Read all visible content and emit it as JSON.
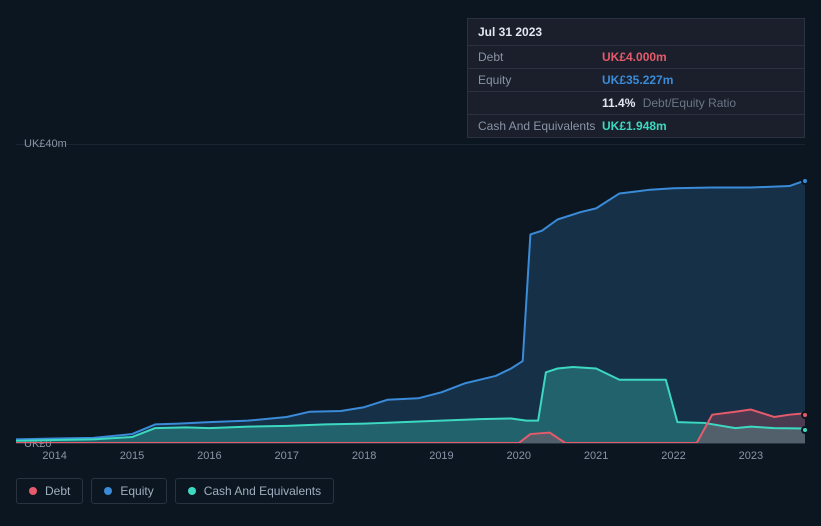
{
  "tooltip": {
    "date": "Jul 31 2023",
    "rows": {
      "debt": {
        "label": "Debt",
        "value": "UK£4.000m"
      },
      "equity": {
        "label": "Equity",
        "value": "UK£35.227m"
      },
      "ratio": {
        "pct": "11.4%",
        "label": "Debt/Equity Ratio"
      },
      "cash": {
        "label": "Cash And Equivalents",
        "value": "UK£1.948m"
      }
    }
  },
  "chart": {
    "type": "area",
    "background_color": "#0c1621",
    "grid_color": "rgba(140,150,170,0.12)",
    "axis_text_color": "#8a94a6",
    "y": {
      "min": 0,
      "max": 40,
      "ticks": [
        {
          "v": 40,
          "label": "UK£40m"
        },
        {
          "v": 0,
          "label": "UK£0"
        }
      ]
    },
    "x": {
      "min": 2013.5,
      "max": 2023.7,
      "ticks": [
        2014,
        2015,
        2016,
        2017,
        2018,
        2019,
        2020,
        2021,
        2022,
        2023
      ]
    },
    "series": {
      "equity": {
        "label": "Equity",
        "stroke": "#3a8bd8",
        "fill": "rgba(58,139,216,0.22)",
        "line_width": 2,
        "points": [
          [
            2013.5,
            0.5
          ],
          [
            2014.0,
            0.6
          ],
          [
            2014.5,
            0.7
          ],
          [
            2015.0,
            1.2
          ],
          [
            2015.3,
            2.5
          ],
          [
            2015.6,
            2.6
          ],
          [
            2016.0,
            2.8
          ],
          [
            2016.5,
            3.0
          ],
          [
            2017.0,
            3.5
          ],
          [
            2017.3,
            4.2
          ],
          [
            2017.7,
            4.3
          ],
          [
            2018.0,
            4.8
          ],
          [
            2018.3,
            5.8
          ],
          [
            2018.7,
            6.0
          ],
          [
            2019.0,
            6.8
          ],
          [
            2019.3,
            8.0
          ],
          [
            2019.7,
            9.0
          ],
          [
            2019.9,
            10.0
          ],
          [
            2020.05,
            11.0
          ],
          [
            2020.15,
            28.0
          ],
          [
            2020.3,
            28.5
          ],
          [
            2020.5,
            30.0
          ],
          [
            2020.8,
            31.0
          ],
          [
            2021.0,
            31.5
          ],
          [
            2021.3,
            33.5
          ],
          [
            2021.7,
            34.0
          ],
          [
            2022.0,
            34.2
          ],
          [
            2022.5,
            34.3
          ],
          [
            2023.0,
            34.3
          ],
          [
            2023.5,
            34.5
          ],
          [
            2023.7,
            35.227
          ]
        ]
      },
      "cash": {
        "label": "Cash And Equivalents",
        "stroke": "#3dd8c0",
        "fill": "rgba(61,216,192,0.30)",
        "line_width": 2,
        "points": [
          [
            2013.5,
            0.3
          ],
          [
            2014.0,
            0.4
          ],
          [
            2014.5,
            0.5
          ],
          [
            2015.0,
            0.8
          ],
          [
            2015.3,
            2.0
          ],
          [
            2015.7,
            2.1
          ],
          [
            2016.0,
            2.0
          ],
          [
            2016.5,
            2.2
          ],
          [
            2017.0,
            2.3
          ],
          [
            2017.5,
            2.5
          ],
          [
            2018.0,
            2.6
          ],
          [
            2018.5,
            2.8
          ],
          [
            2019.0,
            3.0
          ],
          [
            2019.5,
            3.2
          ],
          [
            2019.9,
            3.3
          ],
          [
            2020.1,
            3.0
          ],
          [
            2020.25,
            3.0
          ],
          [
            2020.35,
            9.5
          ],
          [
            2020.5,
            10.0
          ],
          [
            2020.7,
            10.2
          ],
          [
            2021.0,
            10.0
          ],
          [
            2021.3,
            8.5
          ],
          [
            2021.6,
            8.5
          ],
          [
            2021.9,
            8.5
          ],
          [
            2022.05,
            2.8
          ],
          [
            2022.4,
            2.7
          ],
          [
            2022.8,
            2.0
          ],
          [
            2023.0,
            2.2
          ],
          [
            2023.3,
            2.0
          ],
          [
            2023.7,
            1.948
          ]
        ]
      },
      "debt": {
        "label": "Debt",
        "stroke": "#e65b6b",
        "fill": "rgba(230,91,107,0.25)",
        "line_width": 2,
        "points": [
          [
            2013.5,
            0.0
          ],
          [
            2015.0,
            0.0
          ],
          [
            2016.0,
            0.0
          ],
          [
            2018.0,
            0.0
          ],
          [
            2019.5,
            0.0
          ],
          [
            2020.0,
            0.0
          ],
          [
            2020.15,
            1.2
          ],
          [
            2020.4,
            1.4
          ],
          [
            2020.6,
            0.0
          ],
          [
            2021.0,
            0.0
          ],
          [
            2022.0,
            0.0
          ],
          [
            2022.3,
            0.0
          ],
          [
            2022.5,
            3.8
          ],
          [
            2022.8,
            4.2
          ],
          [
            2023.0,
            4.5
          ],
          [
            2023.3,
            3.5
          ],
          [
            2023.5,
            3.8
          ],
          [
            2023.7,
            4.0
          ]
        ]
      }
    },
    "legend_order": [
      "debt",
      "equity",
      "cash"
    ]
  }
}
